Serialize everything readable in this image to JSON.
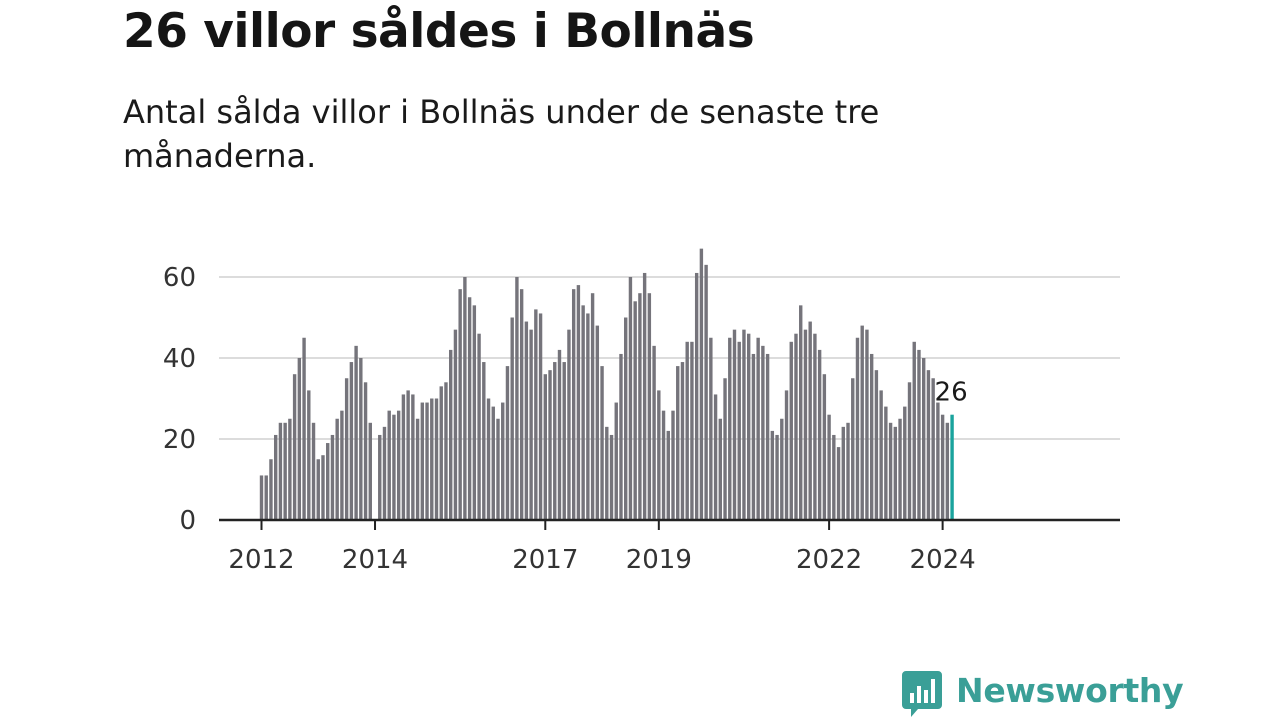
{
  "header": {
    "title": "26 villor såldes i Bollnäs",
    "subtitle": "Antal sålda villor i Bollnäs under de senaste tre månaderna."
  },
  "brand": {
    "name": "Newsworthy",
    "color": "#3a9f97"
  },
  "chart_data": {
    "type": "bar",
    "start": "2012-01",
    "x": [
      "2012-01",
      "2012-02",
      "2012-03",
      "2012-04",
      "2012-05",
      "2012-06",
      "2012-07",
      "2012-08",
      "2012-09",
      "2012-10",
      "2012-11",
      "2012-12",
      "2013-01",
      "2013-02",
      "2013-03",
      "2013-04",
      "2013-05",
      "2013-06",
      "2013-07",
      "2013-08",
      "2013-09",
      "2013-10",
      "2013-11",
      "2013-12",
      "2014-01",
      "2014-02",
      "2014-03",
      "2014-04",
      "2014-05",
      "2014-06",
      "2014-07",
      "2014-08",
      "2014-09",
      "2014-10",
      "2014-11",
      "2014-12",
      "2015-01",
      "2015-02",
      "2015-03",
      "2015-04",
      "2015-05",
      "2015-06",
      "2015-07",
      "2015-08",
      "2015-09",
      "2015-10",
      "2015-11",
      "2015-12",
      "2016-01",
      "2016-02",
      "2016-03",
      "2016-04",
      "2016-05",
      "2016-06",
      "2016-07",
      "2016-08",
      "2016-09",
      "2016-10",
      "2016-11",
      "2016-12",
      "2017-01",
      "2017-02",
      "2017-03",
      "2017-04",
      "2017-05",
      "2017-06",
      "2017-07",
      "2017-08",
      "2017-09",
      "2017-10",
      "2017-11",
      "2017-12",
      "2018-01",
      "2018-02",
      "2018-03",
      "2018-04",
      "2018-05",
      "2018-06",
      "2018-07",
      "2018-08",
      "2018-09",
      "2018-10",
      "2018-11",
      "2018-12",
      "2019-01",
      "2019-02",
      "2019-03",
      "2019-04",
      "2019-05",
      "2019-06",
      "2019-07",
      "2019-08",
      "2019-09",
      "2019-10",
      "2019-11",
      "2019-12",
      "2020-01",
      "2020-02",
      "2020-03",
      "2020-04",
      "2020-05",
      "2020-06",
      "2020-07",
      "2020-08",
      "2020-09",
      "2020-10",
      "2020-11",
      "2020-12",
      "2021-01",
      "2021-02",
      "2021-03",
      "2021-04",
      "2021-05",
      "2021-06",
      "2021-07",
      "2021-08",
      "2021-09",
      "2021-10",
      "2021-11",
      "2021-12",
      "2022-01",
      "2022-02",
      "2022-03",
      "2022-04",
      "2022-05",
      "2022-06",
      "2022-07",
      "2022-08",
      "2022-09",
      "2022-10",
      "2022-11",
      "2022-12",
      "2023-01",
      "2023-02",
      "2023-03",
      "2023-04",
      "2023-05",
      "2023-06",
      "2023-07",
      "2023-08",
      "2023-09",
      "2023-10",
      "2023-11",
      "2023-12",
      "2024-01",
      "2024-02",
      "2024-03"
    ],
    "values": [
      11,
      11,
      15,
      21,
      24,
      24,
      25,
      36,
      40,
      45,
      32,
      24,
      15,
      16,
      19,
      21,
      25,
      27,
      35,
      39,
      43,
      40,
      34,
      24,
      null,
      21,
      23,
      27,
      26,
      27,
      31,
      32,
      31,
      25,
      29,
      29,
      30,
      30,
      33,
      34,
      42,
      47,
      57,
      60,
      55,
      53,
      46,
      39,
      30,
      28,
      25,
      29,
      38,
      50,
      60,
      57,
      49,
      47,
      52,
      51,
      36,
      37,
      39,
      42,
      39,
      47,
      57,
      58,
      53,
      51,
      56,
      48,
      38,
      23,
      21,
      29,
      41,
      50,
      60,
      54,
      56,
      61,
      56,
      43,
      32,
      27,
      22,
      27,
      38,
      39,
      44,
      44,
      61,
      67,
      63,
      45,
      31,
      25,
      35,
      45,
      47,
      44,
      47,
      46,
      41,
      45,
      43,
      41,
      22,
      21,
      25,
      32,
      44,
      46,
      53,
      47,
      49,
      46,
      42,
      36,
      26,
      21,
      18,
      23,
      24,
      35,
      45,
      48,
      47,
      41,
      37,
      32,
      28,
      24,
      23,
      25,
      28,
      34,
      44,
      42,
      40,
      37,
      35,
      29,
      26,
      24,
      26
    ],
    "highlight_index": 146,
    "highlight_label": "26",
    "bar_color": "#75747b",
    "highlight_color": "#1aa39d",
    "yticks": [
      0,
      20,
      40,
      60
    ],
    "ylim": [
      0,
      70
    ],
    "xticks": [
      {
        "value": "2012-01",
        "label": "2012"
      },
      {
        "value": "2014-01",
        "label": "2014"
      },
      {
        "value": "2017-01",
        "label": "2017"
      },
      {
        "value": "2019-01",
        "label": "2019"
      },
      {
        "value": "2022-01",
        "label": "2022"
      },
      {
        "value": "2024-01",
        "label": "2024"
      }
    ],
    "grid": true
  }
}
